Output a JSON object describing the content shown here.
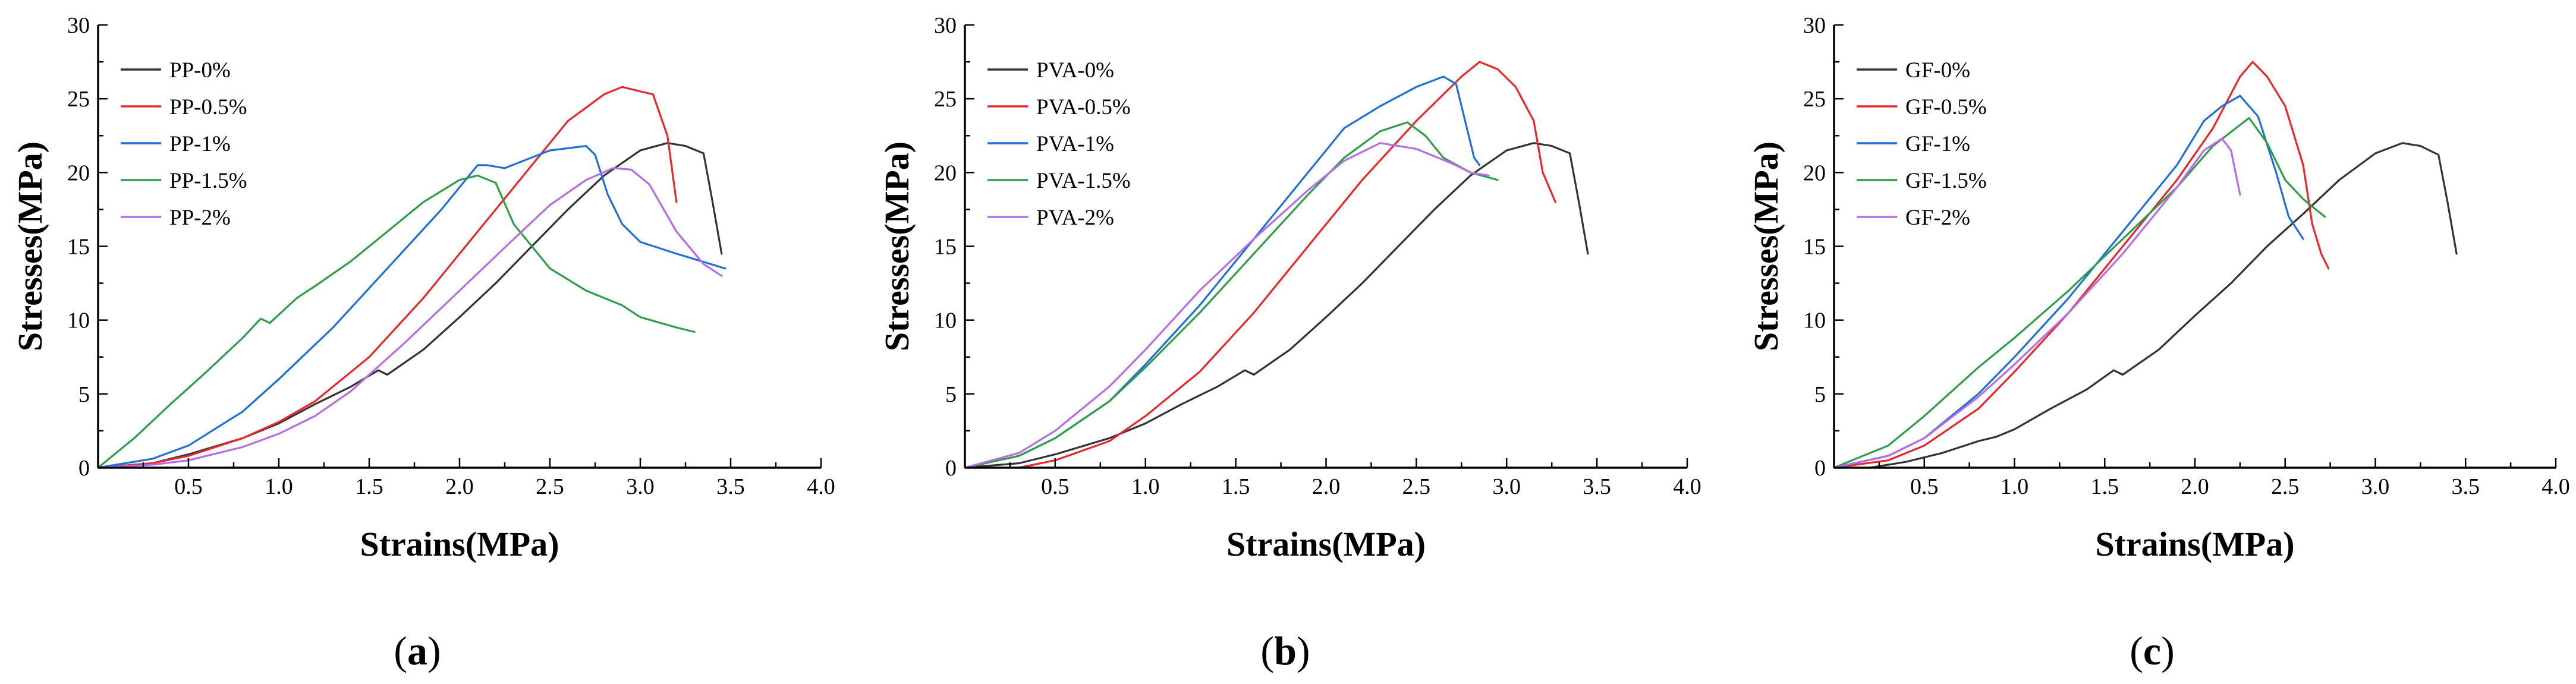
{
  "figure": {
    "colors": {
      "black": "#333333",
      "red": "#e8282b",
      "blue": "#1f6fd9",
      "green": "#2e9e4a",
      "purple": "#b76be6"
    }
  },
  "chart_data": [
    {
      "type": "line",
      "id": "a",
      "panel_label": "a",
      "xlabel": "Strains(MPa)",
      "ylabel": "Stresses(MPa)",
      "xlim": [
        0,
        4.0
      ],
      "ylim": [
        0,
        30
      ],
      "x_ticks": [
        "0.5",
        "1.0",
        "1.5",
        "2.0",
        "2.5",
        "3.0",
        "3.5",
        "4.0"
      ],
      "y_ticks": [
        "0",
        "5",
        "10",
        "15",
        "20",
        "25",
        "30"
      ],
      "legend_position": "top-left",
      "series": [
        {
          "name": "PP-0%",
          "color": "#333333",
          "x": [
            0,
            0.3,
            0.5,
            0.8,
            1.0,
            1.2,
            1.4,
            1.55,
            1.6,
            1.8,
            2.0,
            2.2,
            2.4,
            2.6,
            2.8,
            3.0,
            3.15,
            3.25,
            3.35,
            3.4,
            3.45
          ],
          "y": [
            0,
            0.3,
            0.9,
            2.0,
            3.0,
            4.3,
            5.5,
            6.6,
            6.3,
            8.0,
            10.2,
            12.5,
            15.0,
            17.5,
            19.8,
            21.5,
            22.0,
            21.8,
            21.3,
            18.0,
            14.5
          ]
        },
        {
          "name": "PP-0.5%",
          "color": "#e8282b",
          "x": [
            0,
            0.3,
            0.5,
            0.8,
            1.0,
            1.2,
            1.5,
            1.8,
            2.0,
            2.3,
            2.6,
            2.8,
            2.9,
            3.0,
            3.07,
            3.15,
            3.2
          ],
          "y": [
            0,
            0.3,
            0.8,
            2.0,
            3.1,
            4.5,
            7.5,
            11.5,
            14.5,
            19.0,
            23.5,
            25.3,
            25.8,
            25.5,
            25.3,
            22.5,
            18.0
          ]
        },
        {
          "name": "PP-1%",
          "color": "#1f6fd9",
          "x": [
            0,
            0.3,
            0.5,
            0.8,
            1.0,
            1.3,
            1.6,
            1.9,
            2.1,
            2.15,
            2.25,
            2.5,
            2.7,
            2.75,
            2.82,
            2.9,
            3.0,
            3.2,
            3.47
          ],
          "y": [
            0,
            0.6,
            1.5,
            3.8,
            6.0,
            9.5,
            13.5,
            17.5,
            20.5,
            20.5,
            20.3,
            21.5,
            21.8,
            21.2,
            18.5,
            16.5,
            15.3,
            14.5,
            13.5
          ]
        },
        {
          "name": "PP-1.5%",
          "color": "#2e9e4a",
          "x": [
            0,
            0.2,
            0.4,
            0.6,
            0.8,
            0.9,
            0.95,
            1.1,
            1.2,
            1.4,
            1.6,
            1.8,
            2.0,
            2.1,
            2.2,
            2.3,
            2.5,
            2.7,
            2.9,
            3.0,
            3.2,
            3.3
          ],
          "y": [
            0,
            2.0,
            4.3,
            6.5,
            8.8,
            10.1,
            9.8,
            11.5,
            12.3,
            14.0,
            16.0,
            18.0,
            19.5,
            19.8,
            19.3,
            16.5,
            13.5,
            12.0,
            11.0,
            10.2,
            9.5,
            9.2
          ]
        },
        {
          "name": "PP-2%",
          "color": "#b76be6",
          "x": [
            0,
            0.3,
            0.5,
            0.8,
            1.0,
            1.2,
            1.4,
            1.7,
            2.0,
            2.3,
            2.5,
            2.7,
            2.85,
            2.95,
            3.05,
            3.2,
            3.35,
            3.45
          ],
          "y": [
            0,
            0.2,
            0.5,
            1.4,
            2.3,
            3.5,
            5.2,
            8.5,
            12.0,
            15.5,
            17.8,
            19.5,
            20.3,
            20.2,
            19.2,
            16.0,
            13.8,
            13.0
          ]
        }
      ]
    },
    {
      "type": "line",
      "id": "b",
      "panel_label": "b",
      "xlabel": "Strains(MPa)",
      "ylabel": "Stresses(MPa)",
      "xlim": [
        0,
        4.0
      ],
      "ylim": [
        0,
        30
      ],
      "x_ticks": [
        "0.5",
        "1.0",
        "1.5",
        "2.0",
        "2.5",
        "3.0",
        "3.5",
        "4.0"
      ],
      "y_ticks": [
        "0",
        "5",
        "10",
        "15",
        "20",
        "25",
        "30"
      ],
      "legend_position": "top-left",
      "series": [
        {
          "name": "PVA-0%",
          "color": "#333333",
          "x": [
            0,
            0.3,
            0.5,
            0.8,
            1.0,
            1.2,
            1.4,
            1.55,
            1.6,
            1.8,
            2.0,
            2.2,
            2.4,
            2.6,
            2.8,
            3.0,
            3.15,
            3.25,
            3.35,
            3.4,
            3.45
          ],
          "y": [
            0,
            0.3,
            0.9,
            2.0,
            3.0,
            4.3,
            5.5,
            6.6,
            6.3,
            8.0,
            10.2,
            12.5,
            15.0,
            17.5,
            19.8,
            21.5,
            22.0,
            21.8,
            21.3,
            18.0,
            14.5
          ]
        },
        {
          "name": "PVA-0.5%",
          "color": "#e8282b",
          "x": [
            0.3,
            0.5,
            0.8,
            1.0,
            1.3,
            1.6,
            1.9,
            2.2,
            2.5,
            2.75,
            2.85,
            2.95,
            3.05,
            3.15,
            3.2,
            3.27
          ],
          "y": [
            0,
            0.5,
            1.8,
            3.5,
            6.5,
            10.5,
            15.0,
            19.5,
            23.5,
            26.5,
            27.5,
            27.0,
            25.8,
            23.5,
            20.0,
            18.0
          ]
        },
        {
          "name": "PVA-1%",
          "color": "#1f6fd9",
          "x": [
            0,
            0.3,
            0.5,
            0.8,
            1.0,
            1.3,
            1.6,
            1.9,
            2.1,
            2.3,
            2.5,
            2.65,
            2.72,
            2.78,
            2.82,
            2.85
          ],
          "y": [
            0,
            0.8,
            2.0,
            4.5,
            7.0,
            11.0,
            15.5,
            20.0,
            23.0,
            24.5,
            25.8,
            26.5,
            26.0,
            23.0,
            21.0,
            20.5
          ]
        },
        {
          "name": "PVA-1.5%",
          "color": "#2e9e4a",
          "x": [
            0,
            0.3,
            0.5,
            0.8,
            1.0,
            1.3,
            1.6,
            1.9,
            2.1,
            2.3,
            2.45,
            2.55,
            2.65,
            2.8,
            2.95
          ],
          "y": [
            0,
            0.8,
            2.0,
            4.5,
            6.8,
            10.5,
            14.5,
            18.5,
            21.0,
            22.8,
            23.4,
            22.5,
            21.0,
            20.0,
            19.5
          ]
        },
        {
          "name": "PVA-2%",
          "color": "#b76be6",
          "x": [
            0,
            0.3,
            0.5,
            0.8,
            1.0,
            1.3,
            1.6,
            1.9,
            2.1,
            2.3,
            2.5,
            2.7,
            2.8,
            2.9
          ],
          "y": [
            0,
            1.0,
            2.5,
            5.5,
            8.0,
            12.0,
            15.5,
            18.8,
            20.8,
            22.0,
            21.6,
            20.6,
            20.0,
            19.8
          ]
        }
      ]
    },
    {
      "type": "line",
      "id": "c",
      "panel_label": "c",
      "xlabel": "Strains(MPa)",
      "ylabel": "Stresses(MPa)",
      "xlim": [
        0,
        4.0
      ],
      "ylim": [
        0,
        30
      ],
      "x_ticks": [
        "0.5",
        "1.0",
        "1.5",
        "2.0",
        "2.5",
        "3.0",
        "3.5",
        "4.0"
      ],
      "y_ticks": [
        "0",
        "5",
        "10",
        "15",
        "20",
        "25",
        "30"
      ],
      "legend_position": "top-left",
      "series": [
        {
          "name": "GF-0%",
          "color": "#333333",
          "x": [
            0.2,
            0.4,
            0.6,
            0.8,
            0.9,
            1.0,
            1.2,
            1.4,
            1.55,
            1.6,
            1.8,
            2.0,
            2.2,
            2.4,
            2.6,
            2.8,
            3.0,
            3.15,
            3.25,
            3.35,
            3.4,
            3.45
          ],
          "y": [
            0,
            0.4,
            1.0,
            1.8,
            2.1,
            2.6,
            4.0,
            5.3,
            6.6,
            6.3,
            8.0,
            10.3,
            12.5,
            15.0,
            17.2,
            19.5,
            21.3,
            22.0,
            21.8,
            21.2,
            18.0,
            14.5
          ]
        },
        {
          "name": "GF-0.5%",
          "color": "#e8282b",
          "x": [
            0,
            0.3,
            0.5,
            0.8,
            1.0,
            1.3,
            1.6,
            1.9,
            2.1,
            2.25,
            2.32,
            2.4,
            2.5,
            2.6,
            2.65,
            2.7,
            2.74
          ],
          "y": [
            0,
            0.5,
            1.5,
            4.0,
            6.5,
            10.5,
            15.0,
            19.5,
            23.0,
            26.5,
            27.5,
            26.5,
            24.5,
            20.5,
            16.5,
            14.5,
            13.5
          ]
        },
        {
          "name": "GF-1%",
          "color": "#1f6fd9",
          "x": [
            0,
            0.3,
            0.5,
            0.8,
            1.0,
            1.3,
            1.6,
            1.9,
            2.05,
            2.15,
            2.25,
            2.35,
            2.45,
            2.52,
            2.6
          ],
          "y": [
            0,
            0.8,
            2.0,
            5.0,
            7.5,
            11.5,
            16.0,
            20.5,
            23.5,
            24.5,
            25.2,
            23.8,
            20.0,
            17.0,
            15.5
          ]
        },
        {
          "name": "GF-1.5%",
          "color": "#2e9e4a",
          "x": [
            0,
            0.3,
            0.5,
            0.8,
            1.0,
            1.3,
            1.6,
            1.9,
            2.1,
            2.3,
            2.4,
            2.5,
            2.6,
            2.72
          ],
          "y": [
            0,
            1.5,
            3.5,
            6.8,
            8.8,
            12.0,
            15.5,
            19.0,
            21.8,
            23.7,
            22.0,
            19.5,
            18.2,
            17.0
          ]
        },
        {
          "name": "GF-2%",
          "color": "#b76be6",
          "x": [
            0,
            0.3,
            0.5,
            0.8,
            1.0,
            1.3,
            1.6,
            1.9,
            2.05,
            2.15,
            2.2,
            2.25
          ],
          "y": [
            0,
            0.8,
            2.0,
            4.8,
            7.0,
            10.5,
            14.5,
            19.0,
            21.5,
            22.3,
            21.5,
            18.5
          ]
        }
      ]
    }
  ]
}
